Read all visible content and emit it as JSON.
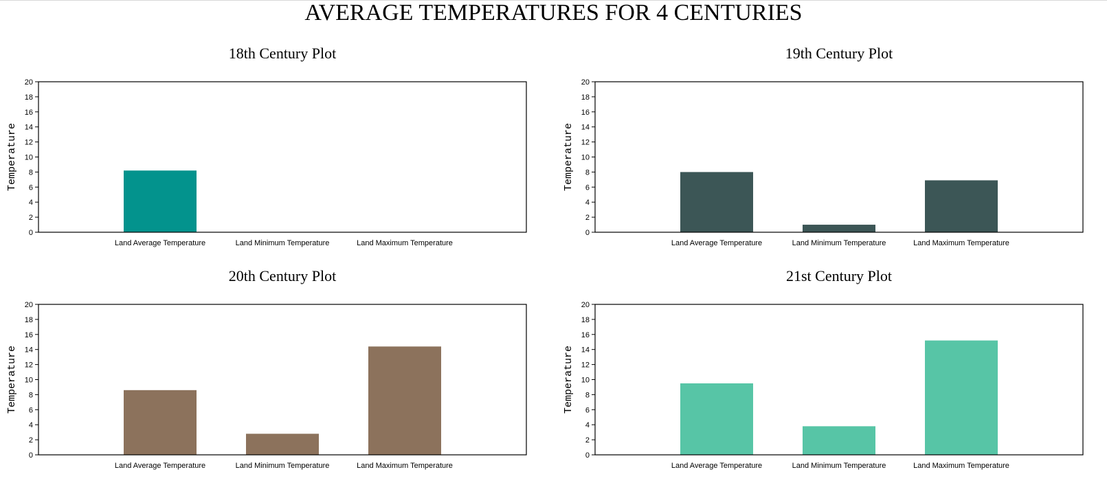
{
  "title": "AVERAGE TEMPERATURES FOR 4 CENTURIES",
  "chart_data": [
    {
      "type": "bar",
      "title": "18th Century Plot",
      "xlabel": "",
      "ylabel": "Temperature",
      "categories": [
        "Land Average Temperature",
        "Land Minimum Temperature",
        "Land Maximum Temperature"
      ],
      "values": [
        8.2,
        null,
        null
      ],
      "ylim": [
        0,
        20
      ],
      "yticks": [
        "0",
        "2",
        "4",
        "6",
        "8",
        "10",
        "12",
        "14",
        "16",
        "18",
        "20"
      ],
      "color": "#03938d",
      "grid": false
    },
    {
      "type": "bar",
      "title": "19th Century Plot",
      "xlabel": "",
      "ylabel": "Temperature",
      "categories": [
        "Land Average Temperature",
        "Land Minimum Temperature",
        "Land Maximum Temperature"
      ],
      "values": [
        8.0,
        1.0,
        6.9
      ],
      "ylim": [
        0,
        20
      ],
      "yticks": [
        "0",
        "2",
        "4",
        "6",
        "8",
        "10",
        "12",
        "14",
        "16",
        "18",
        "20"
      ],
      "color": "#3c5656",
      "grid": false
    },
    {
      "type": "bar",
      "title": "20th Century Plot",
      "xlabel": "",
      "ylabel": "Temperature",
      "categories": [
        "Land Average Temperature",
        "Land Minimum Temperature",
        "Land Maximum Temperature"
      ],
      "values": [
        8.6,
        2.8,
        14.4
      ],
      "ylim": [
        0,
        20
      ],
      "yticks": [
        "0",
        "2",
        "4",
        "6",
        "8",
        "10",
        "12",
        "14",
        "16",
        "18",
        "20"
      ],
      "color": "#8c725c",
      "grid": false
    },
    {
      "type": "bar",
      "title": "21st Century Plot",
      "xlabel": "",
      "ylabel": "Temperature",
      "categories": [
        "Land Average Temperature",
        "Land Minimum Temperature",
        "Land Maximum Temperature"
      ],
      "values": [
        9.5,
        3.8,
        15.2
      ],
      "ylim": [
        0,
        20
      ],
      "yticks": [
        "0",
        "2",
        "4",
        "6",
        "8",
        "10",
        "12",
        "14",
        "16",
        "18",
        "20"
      ],
      "color": "#57c5a6",
      "grid": false
    }
  ]
}
